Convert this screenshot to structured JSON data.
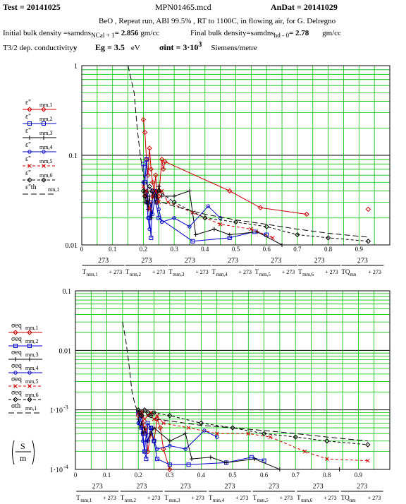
{
  "header": {
    "test": "Test = 20141025",
    "file": "MPN01465.mcd",
    "andat": "AnDat = 20141029",
    "desc": "BeO , Repeat run, ABI 99.5% , RT to 1100C, in flowing air, for G. Delregno",
    "init_density_label": "Initial bulk density =samdns",
    "init_density_sub": "NCal + 1",
    "init_density_value": "= 2.856",
    "init_density_unit": "gm/cc",
    "final_density_label": "Final bulk density=samdns",
    "final_density_sub": "hd - 0",
    "final_density_value": "= 2.78",
    "final_density_unit": "gm/cc",
    "cond_label": "T3/2  dep. conductivity",
    "cond_y": "y",
    "eg_label": "Eg = 3.5",
    "eg_unit": "eV",
    "sigma_label": "σint = 3·10",
    "sigma_exp": "3",
    "sigma_unit": "Siemens/metre"
  },
  "colors": {
    "grid": "#00c000",
    "s1": "#cc0000",
    "s2": "#0000cc",
    "s3": "#000000",
    "s4": "#0000cc",
    "s5": "#cc0000",
    "s6": "#000000",
    "th": "#000000"
  },
  "chart_data": [
    {
      "type": "line",
      "yscale": "log",
      "ylim": [
        0.01,
        1
      ],
      "xlim": [
        0,
        1
      ],
      "grid": true,
      "legend_placement": "left",
      "y_ticks": [
        "1",
        "0.1",
        "0.01"
      ],
      "x_ticks": [
        "0",
        "0.1",
        "0.2",
        "0.3",
        "0.4",
        "0.5",
        "0.6",
        "0.7",
        "0.8",
        "0.9"
      ],
      "x_label_numerators": [
        "273",
        "273",
        "273",
        "273",
        "273",
        "273",
        "273"
      ],
      "x_label_denominators": [
        "T",
        "T",
        "T",
        "T",
        "T",
        "T",
        "TQ"
      ],
      "x_label_subs": [
        "mm,1",
        "mm,2",
        "mm,3",
        "mm,4",
        "mm,5",
        "mm,6",
        "mn"
      ],
      "x_label_tail": "+ 273",
      "legend": [
        {
          "label": "ε''",
          "sub": "mm,1"
        },
        {
          "label": "ε''",
          "sub": "mm,2"
        },
        {
          "label": "ε''",
          "sub": "mm,3"
        },
        {
          "label": "ε''",
          "sub": "mm,4"
        },
        {
          "label": "ε''",
          "sub": "mm,5"
        },
        {
          "label": "ε''",
          "sub": "mm,6"
        },
        {
          "label": "ε''th",
          "sub": "mn,1"
        }
      ],
      "series": [
        {
          "values": [
            [
              0.2,
              0.25
            ],
            [
              0.205,
              0.18
            ],
            [
              0.21,
              0.09
            ],
            [
              0.215,
              0.06
            ],
            [
              0.22,
              0.12
            ],
            [
              0.225,
              0.07
            ],
            [
              0.23,
              0.05
            ],
            [
              0.235,
              0.04
            ],
            [
              0.24,
              0.06
            ],
            [
              0.245,
              0.03
            ],
            [
              0.25,
              0.035
            ],
            [
              0.26,
              0.09
            ],
            [
              0.265,
              0.07
            ],
            [
              0.27,
              0.085
            ],
            [
              0.48,
              0.04
            ],
            [
              0.58,
              0.026
            ],
            [
              0.73,
              0.022
            ]
          ]
        },
        {
          "values": [
            [
              0.2,
              0.08
            ],
            [
              0.205,
              0.05
            ],
            [
              0.21,
              0.09
            ],
            [
              0.215,
              0.03
            ],
            [
              0.22,
              0.02
            ],
            [
              0.225,
              0.012
            ],
            [
              0.23,
              0.04
            ],
            [
              0.24,
              0.03
            ],
            [
              0.25,
              0.02
            ],
            [
              0.36,
              0.011
            ],
            [
              0.48,
              0.012
            ],
            [
              0.56,
              0.014
            ],
            [
              0.6,
              0.013
            ]
          ]
        },
        {
          "values": [
            [
              0.2,
              0.05
            ],
            [
              0.205,
              0.03
            ],
            [
              0.21,
              0.04
            ],
            [
              0.215,
              0.025
            ],
            [
              0.22,
              0.035
            ],
            [
              0.225,
              0.02
            ],
            [
              0.23,
              0.035
            ],
            [
              0.24,
              0.03
            ],
            [
              0.25,
              0.045
            ],
            [
              0.26,
              0.035
            ],
            [
              0.3,
              0.035
            ],
            [
              0.35,
              0.04
            ],
            [
              0.37,
              0.013
            ],
            [
              0.43,
              0.015
            ],
            [
              0.48,
              0.013
            ],
            [
              0.57,
              0.014
            ],
            [
              0.65,
              0.01
            ]
          ]
        },
        {
          "values": [
            [
              0.2,
              0.05
            ],
            [
              0.21,
              0.035
            ],
            [
              0.215,
              0.02
            ],
            [
              0.22,
              0.015
            ],
            [
              0.225,
              0.03
            ],
            [
              0.23,
              0.022
            ],
            [
              0.24,
              0.04
            ],
            [
              0.25,
              0.025
            ],
            [
              0.26,
              0.018
            ],
            [
              0.3,
              0.02
            ],
            [
              0.35,
              0.016
            ],
            [
              0.41,
              0.027
            ],
            [
              0.45,
              0.02
            ]
          ]
        },
        {
          "values": [
            [
              0.2,
              0.045
            ],
            [
              0.205,
              0.035
            ],
            [
              0.21,
              0.04
            ],
            [
              0.22,
              0.025
            ],
            [
              0.23,
              0.035
            ],
            [
              0.24,
              0.04
            ],
            [
              0.25,
              0.03
            ],
            [
              0.26,
              0.04
            ],
            [
              0.28,
              0.03
            ],
            [
              0.36,
              0.023
            ],
            [
              0.45,
              0.017
            ],
            [
              0.55,
              0.015
            ],
            [
              0.62,
              0.012
            ]
          ]
        },
        {
          "values": [
            [
              0.2,
              0.04
            ],
            [
              0.205,
              0.035
            ],
            [
              0.21,
              0.03
            ],
            [
              0.22,
              0.045
            ],
            [
              0.23,
              0.04
            ],
            [
              0.24,
              0.035
            ],
            [
              0.25,
              0.04
            ],
            [
              0.3,
              0.03
            ],
            [
              0.4,
              0.02
            ],
            [
              0.5,
              0.018
            ],
            [
              0.6,
              0.016
            ],
            [
              0.7,
              0.013
            ],
            [
              0.8,
              0.012
            ],
            [
              0.93,
              0.011
            ]
          ]
        },
        {
          "values": [
            [
              0.15,
              1.0
            ],
            [
              0.17,
              0.5
            ],
            [
              0.18,
              0.2
            ],
            [
              0.19,
              0.1
            ],
            [
              0.2,
              0.06
            ],
            [
              0.22,
              0.04
            ],
            [
              0.26,
              0.03
            ],
            [
              0.3,
              0.027
            ],
            [
              0.4,
              0.022
            ],
            [
              0.5,
              0.019
            ],
            [
              0.6,
              0.017
            ],
            [
              0.7,
              0.015
            ],
            [
              0.8,
              0.0135
            ],
            [
              0.93,
              0.0122
            ]
          ]
        }
      ],
      "extra_points": [
        [
          0.93,
          0.025
        ]
      ]
    },
    {
      "type": "line",
      "yscale": "log",
      "ylim": [
        0.0001,
        0.1
      ],
      "xlim": [
        0,
        1
      ],
      "grid": true,
      "legend_placement": "left",
      "y_ticks": [
        "0.1",
        "0.01",
        "1·10",
        "1·10"
      ],
      "y_tick_exps": [
        "",
        "",
        "-3",
        "-4"
      ],
      "x_ticks": [
        "0",
        "0.1",
        "0.2",
        "0.3",
        "0.4",
        "0.5",
        "0.6",
        "0.7",
        "0.8",
        "0.9"
      ],
      "x_label_numerators": [
        "273",
        "273",
        "273",
        "273",
        "273",
        "273",
        "273"
      ],
      "x_label_denominators": [
        "T",
        "T",
        "T",
        "T",
        "T",
        "T",
        "TQ"
      ],
      "x_label_subs": [
        "mm,1",
        "mm,2",
        "mm,3",
        "mm,4",
        "mm,5",
        "mm,6",
        "mn"
      ],
      "x_label_tail": "+ 273",
      "unit_label_num": "S",
      "unit_label_den": "m",
      "legend": [
        {
          "label": "σeq",
          "sub": "mm,1"
        },
        {
          "label": "σeq",
          "sub": "mm,2"
        },
        {
          "label": "σeq",
          "sub": "mm,3"
        },
        {
          "label": "σeq",
          "sub": "mm,4"
        },
        {
          "label": "σeq",
          "sub": "mm,5"
        },
        {
          "label": "σeq",
          "sub": "mm,6"
        },
        {
          "label": "σth",
          "sub": "mn,1"
        }
      ],
      "series": [
        {
          "values": [
            [
              0.2,
              0.0008
            ],
            [
              0.21,
              0.0009
            ],
            [
              0.215,
              0.0006
            ],
            [
              0.22,
              0.0004
            ],
            [
              0.225,
              0.0005
            ],
            [
              0.23,
              0.0002
            ],
            [
              0.24,
              0.0004
            ],
            [
              0.25,
              0.0003
            ],
            [
              0.26,
              0.0007
            ],
            [
              0.27,
              0.0005
            ],
            [
              0.28,
              0.00022
            ],
            [
              0.3,
              0.0001
            ]
          ]
        },
        {
          "values": [
            [
              0.2,
              0.0009
            ],
            [
              0.205,
              0.0006
            ],
            [
              0.21,
              0.0008
            ],
            [
              0.215,
              0.0004
            ],
            [
              0.22,
              0.0002
            ],
            [
              0.225,
              0.00015
            ],
            [
              0.23,
              0.0006
            ],
            [
              0.24,
              0.0005
            ],
            [
              0.25,
              0.0003
            ],
            [
              0.26,
              0.00015
            ],
            [
              0.3,
              0.00012
            ],
            [
              0.36,
              0.00012
            ],
            [
              0.48,
              0.00013
            ],
            [
              0.56,
              0.00016
            ],
            [
              0.6,
              0.00014
            ]
          ]
        },
        {
          "values": [
            [
              0.2,
              0.0007
            ],
            [
              0.205,
              0.0005
            ],
            [
              0.21,
              0.0006
            ],
            [
              0.215,
              0.0004
            ],
            [
              0.22,
              0.0005
            ],
            [
              0.23,
              0.0003
            ],
            [
              0.24,
              0.0004
            ],
            [
              0.25,
              0.0005
            ],
            [
              0.3,
              0.0003
            ],
            [
              0.35,
              0.0004
            ],
            [
              0.37,
              0.00015
            ],
            [
              0.43,
              0.00016
            ],
            [
              0.48,
              0.00013
            ],
            [
              0.57,
              0.00015
            ],
            [
              0.65,
              0.0001
            ],
            [
              0.84,
              0.0001
            ]
          ]
        },
        {
          "values": [
            [
              0.2,
              0.0006
            ],
            [
              0.21,
              0.0005
            ],
            [
              0.215,
              0.0003
            ],
            [
              0.22,
              0.0002
            ],
            [
              0.225,
              0.0004
            ],
            [
              0.23,
              0.0003
            ],
            [
              0.24,
              0.0005
            ],
            [
              0.25,
              0.0003
            ],
            [
              0.26,
              0.00022
            ],
            [
              0.3,
              0.00025
            ],
            [
              0.35,
              0.00022
            ],
            [
              0.41,
              0.00045
            ],
            [
              0.45,
              0.00035
            ]
          ]
        },
        {
          "values": [
            [
              0.2,
              0.0009
            ],
            [
              0.205,
              0.0008
            ],
            [
              0.21,
              0.0009
            ],
            [
              0.22,
              0.0007
            ],
            [
              0.23,
              0.0008
            ],
            [
              0.24,
              0.0009
            ],
            [
              0.25,
              0.0007
            ],
            [
              0.26,
              0.0008
            ],
            [
              0.28,
              0.0006
            ],
            [
              0.36,
              0.0005
            ],
            [
              0.45,
              0.0004
            ],
            [
              0.55,
              0.0004
            ],
            [
              0.62,
              0.00035
            ],
            [
              0.73,
              0.0002
            ],
            [
              0.8,
              0.00015
            ],
            [
              0.93,
              0.00014
            ]
          ]
        },
        {
          "values": [
            [
              0.2,
              0.001
            ],
            [
              0.205,
              0.0009
            ],
            [
              0.21,
              0.0008
            ],
            [
              0.22,
              0.001
            ],
            [
              0.23,
              0.0009
            ],
            [
              0.24,
              0.0008
            ],
            [
              0.25,
              0.0009
            ],
            [
              0.3,
              0.0008
            ],
            [
              0.4,
              0.0006
            ],
            [
              0.5,
              0.0005
            ],
            [
              0.6,
              0.0004
            ],
            [
              0.7,
              0.00035
            ],
            [
              0.8,
              0.0003
            ],
            [
              0.93,
              0.00026
            ]
          ]
        },
        {
          "values": [
            [
              0.15,
              0.03
            ],
            [
              0.16,
              0.015
            ],
            [
              0.17,
              0.006
            ],
            [
              0.18,
              0.002
            ],
            [
              0.19,
              0.0012
            ],
            [
              0.2,
              0.0009
            ],
            [
              0.22,
              0.0008
            ],
            [
              0.26,
              0.0007
            ],
            [
              0.3,
              0.00065
            ],
            [
              0.4,
              0.00055
            ],
            [
              0.5,
              0.0005
            ],
            [
              0.6,
              0.00045
            ],
            [
              0.7,
              0.0004
            ],
            [
              0.8,
              0.00035
            ],
            [
              0.93,
              0.0003
            ]
          ]
        }
      ],
      "extra_points": []
    }
  ]
}
